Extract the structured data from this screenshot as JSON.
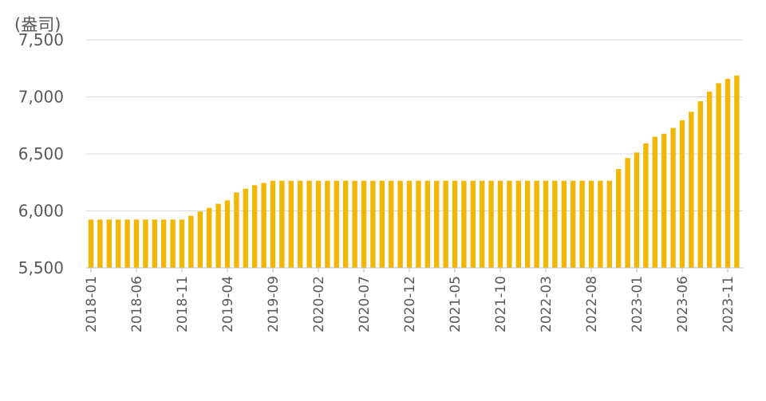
{
  "chart_data": {
    "type": "bar",
    "title": "(盎司)",
    "categories": [
      "2018-01",
      null,
      null,
      null,
      null,
      "2018-06",
      null,
      null,
      null,
      null,
      "2018-11",
      null,
      null,
      null,
      null,
      "2019-04",
      null,
      null,
      null,
      null,
      "2019-09",
      null,
      null,
      null,
      null,
      "2020-02",
      null,
      null,
      null,
      null,
      "2020-07",
      null,
      null,
      null,
      null,
      "2020-12",
      null,
      null,
      null,
      null,
      "2021-05",
      null,
      null,
      null,
      null,
      "2021-10",
      null,
      null,
      null,
      null,
      "2022-03",
      null,
      null,
      null,
      null,
      "2022-08",
      null,
      null,
      null,
      null,
      "2023-01",
      null,
      null,
      null,
      null,
      "2023-06",
      null,
      null,
      null,
      null,
      "2023-11",
      null
    ],
    "values": [
      5924,
      5924,
      5924,
      5924,
      5924,
      5924,
      5924,
      5924,
      5924,
      5924,
      5924,
      5956,
      5994,
      6026,
      6062,
      6092,
      6161,
      6194,
      6225,
      6245,
      6264,
      6264,
      6264,
      6264,
      6264,
      6264,
      6264,
      6264,
      6264,
      6264,
      6264,
      6264,
      6264,
      6264,
      6264,
      6264,
      6264,
      6264,
      6264,
      6264,
      6264,
      6264,
      6264,
      6264,
      6264,
      6264,
      6264,
      6264,
      6264,
      6264,
      6264,
      6264,
      6264,
      6264,
      6264,
      6264,
      6264,
      6264,
      6367,
      6464,
      6512,
      6592,
      6650,
      6676,
      6727,
      6795,
      6869,
      6962,
      7046,
      7120,
      7158,
      7187
    ],
    "color": "#f2b705",
    "ylim": [
      5500,
      7500
    ],
    "yticks": [
      {
        "value": 5500,
        "label": "5,500"
      },
      {
        "value": 6000,
        "label": "6,000"
      },
      {
        "value": 6500,
        "label": "6,500"
      },
      {
        "value": 7000,
        "label": "7,000"
      },
      {
        "value": 7500,
        "label": "7,500"
      }
    ],
    "grid": true
  }
}
